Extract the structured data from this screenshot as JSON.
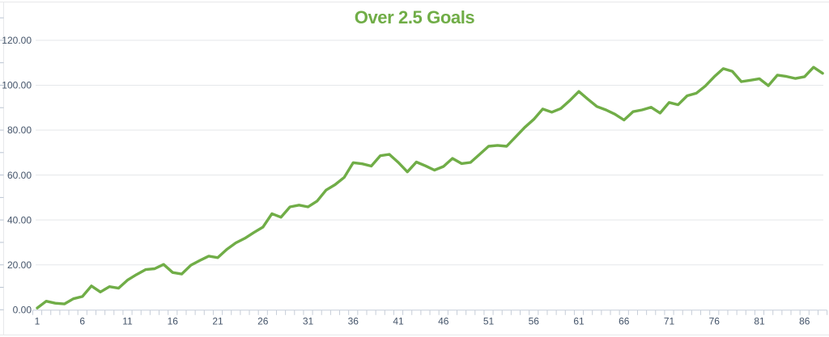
{
  "header": {
    "title": "Over 2.5 Goals",
    "title_color": "#70AD47"
  },
  "chart_data": {
    "type": "line",
    "title": "Over 2.5 Goals",
    "legend": "none",
    "grid": "horizontal-major",
    "xlim": [
      1,
      88
    ],
    "ylim": [
      0,
      120
    ],
    "n_points": 88,
    "x_start": 1,
    "x_tick_step": 5,
    "x_tick_labels": [
      "1",
      "6",
      "11",
      "16",
      "21",
      "26",
      "31",
      "36",
      "41",
      "46",
      "51",
      "56",
      "61",
      "66",
      "71",
      "76",
      "81",
      "86"
    ],
    "y_ticks": [
      0,
      20,
      40,
      60,
      80,
      100,
      120
    ],
    "y_tick_labels": [
      "0.00",
      "20.00",
      "40.00",
      "60.00",
      "80.00",
      "100.00",
      "120.00"
    ],
    "y_minor_tick_step": 10,
    "series": [
      {
        "name": "Over 2.5 Goals",
        "color": "#70AD47",
        "values": [
          0.8,
          3.8,
          2.9,
          2.6,
          4.9,
          5.9,
          10.6,
          7.9,
          10.3,
          9.6,
          13.2,
          15.7,
          17.9,
          18.3,
          20.2,
          16.6,
          15.9,
          19.8,
          21.9,
          23.9,
          23.2,
          26.9,
          29.8,
          31.8,
          34.4,
          36.8,
          42.8,
          41.2,
          45.8,
          46.6,
          45.8,
          48.4,
          53.3,
          55.7,
          58.9,
          65.5,
          65.0,
          64.0,
          68.6,
          69.2,
          65.6,
          61.4,
          65.8,
          64.1,
          62.2,
          63.8,
          67.4,
          65.1,
          65.6,
          69.2,
          72.8,
          73.2,
          72.8,
          77.0,
          81.2,
          84.8,
          89.4,
          88.0,
          89.6,
          93.2,
          97.2,
          93.8,
          90.5,
          89.0,
          87.1,
          84.5,
          88.2,
          89.0,
          90.2,
          87.6,
          92.3,
          91.3,
          95.3,
          96.4,
          99.6,
          103.8,
          107.4,
          106.2,
          101.6,
          102.2,
          102.9,
          99.8,
          104.5,
          103.9,
          103.0,
          103.8,
          108.0,
          105.3
        ]
      }
    ],
    "colors": {
      "line": "#70AD47",
      "axis_labels": "#44546A",
      "gridlines": "#E5E7EA",
      "axis_line": "#C6CDD8",
      "frame_border": "#E7E8EA",
      "left_ruler_ticks": "#B9C3D2",
      "background": "#FFFFFF"
    }
  }
}
